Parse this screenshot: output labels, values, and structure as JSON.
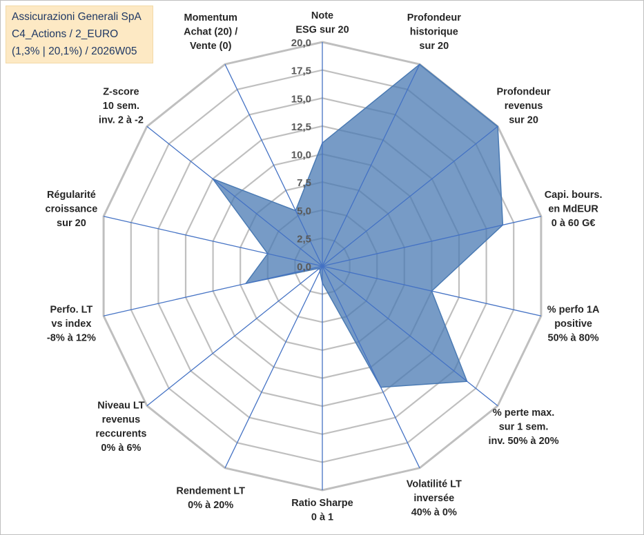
{
  "title_box": {
    "line1": "Assicurazioni Generali SpA",
    "line2": "C4_Actions / 2_EURO",
    "line3": "(1,3% | 20,1%) / 2026W05"
  },
  "colors": {
    "fill": "#4a7ab3",
    "fill_opacity": "0.75",
    "grid": "#bfbfbf",
    "axis": "#4472c4",
    "box_bg": "#fde9c4",
    "box_text": "#1f3864"
  },
  "chart_data": {
    "type": "radar",
    "title": "",
    "rlim": [
      0,
      20
    ],
    "grid": true,
    "ticks": [
      "0,0",
      "2,5",
      "5,0",
      "7,5",
      "10,0",
      "12,5",
      "15,0",
      "17,5",
      "20,0"
    ],
    "tick_values": [
      0,
      2.5,
      5,
      7.5,
      10,
      12.5,
      15,
      17.5,
      20
    ],
    "categories": [
      [
        "Note",
        "ESG sur 20"
      ],
      [
        "Profondeur",
        "historique",
        "sur 20"
      ],
      [
        "Profondeur",
        "revenus",
        "sur 20"
      ],
      [
        "Capi. bours.",
        "en MdEUR",
        "0 à 60 G€"
      ],
      [
        "% perfo 1A",
        "positive",
        "50% à 80%"
      ],
      [
        "% perte max.",
        "sur 1 sem.",
        "inv. 50% à 20%"
      ],
      [
        "Volatilité LT",
        "inversée",
        "40% à 0%"
      ],
      [
        "Ratio Sharpe",
        "0 à 1"
      ],
      [
        "Rendement LT",
        "0% à 20%"
      ],
      [
        "Niveau LT",
        "revenus",
        "reccurents",
        "0% à 6%"
      ],
      [
        "Perfo. LT",
        "vs index",
        "-8% à 12%"
      ],
      [
        "Régularité",
        "croissance",
        "sur 20"
      ],
      [
        "Z-score",
        "10 sem.",
        "inv. 2 à -2"
      ],
      [
        "Momentum",
        "Achat (20) /",
        "Vente (0)"
      ]
    ],
    "series": [
      {
        "name": "Assicurazioni Generali SpA",
        "values": [
          11,
          20,
          20,
          16.5,
          10,
          16.5,
          12,
          1.5,
          0.5,
          0.3,
          7,
          5,
          12.5,
          5.5
        ]
      }
    ]
  }
}
